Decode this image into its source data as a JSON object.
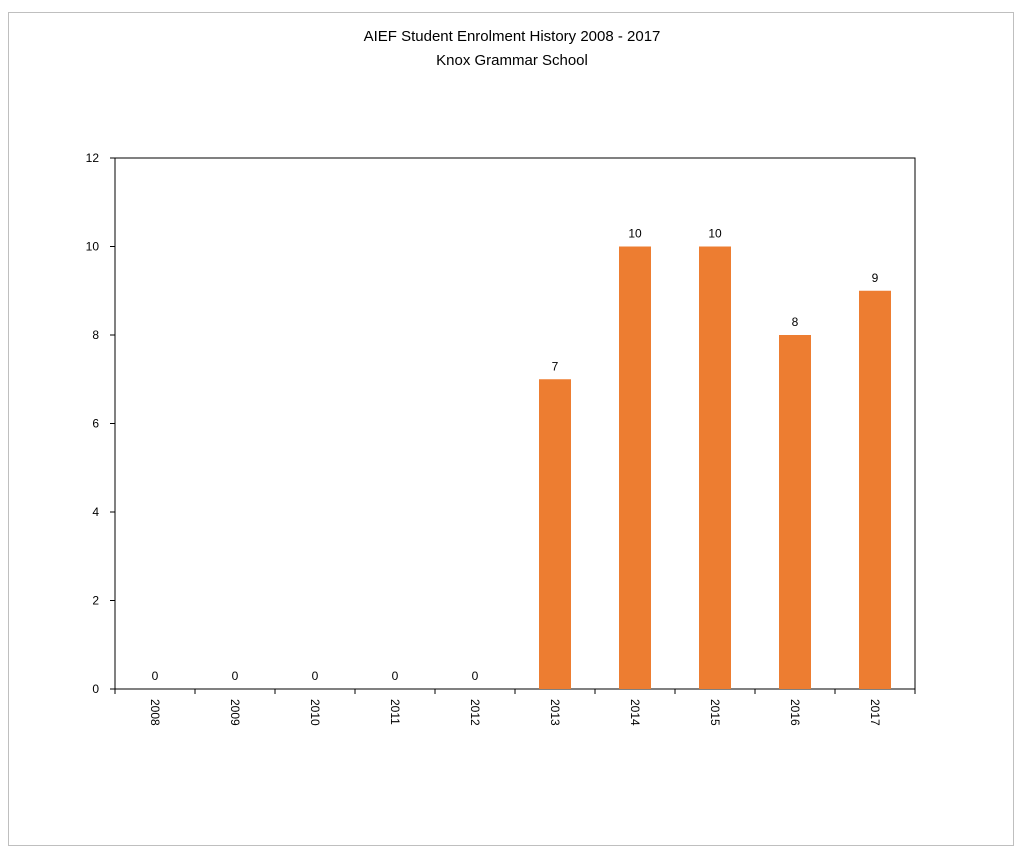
{
  "chart_data": {
    "type": "bar",
    "title": "AIEF Student Enrolment History 2008 - 2017",
    "subtitle": "Knox Grammar School",
    "categories": [
      "2008",
      "2009",
      "2010",
      "2011",
      "2012",
      "2013",
      "2014",
      "2015",
      "2016",
      "2017"
    ],
    "values": [
      0,
      0,
      0,
      0,
      0,
      7,
      10,
      10,
      8,
      9
    ],
    "data_labels": [
      "0",
      "0",
      "0",
      "0",
      "0",
      "7",
      "10",
      "10",
      "8",
      "9"
    ],
    "ylim": [
      0,
      12
    ],
    "yticks": [
      "0",
      "2",
      "4",
      "6",
      "8",
      "10",
      "12"
    ],
    "xlabel": "",
    "ylabel": "",
    "grid": false,
    "legend": "none",
    "bar_color": "#ED7D31"
  }
}
